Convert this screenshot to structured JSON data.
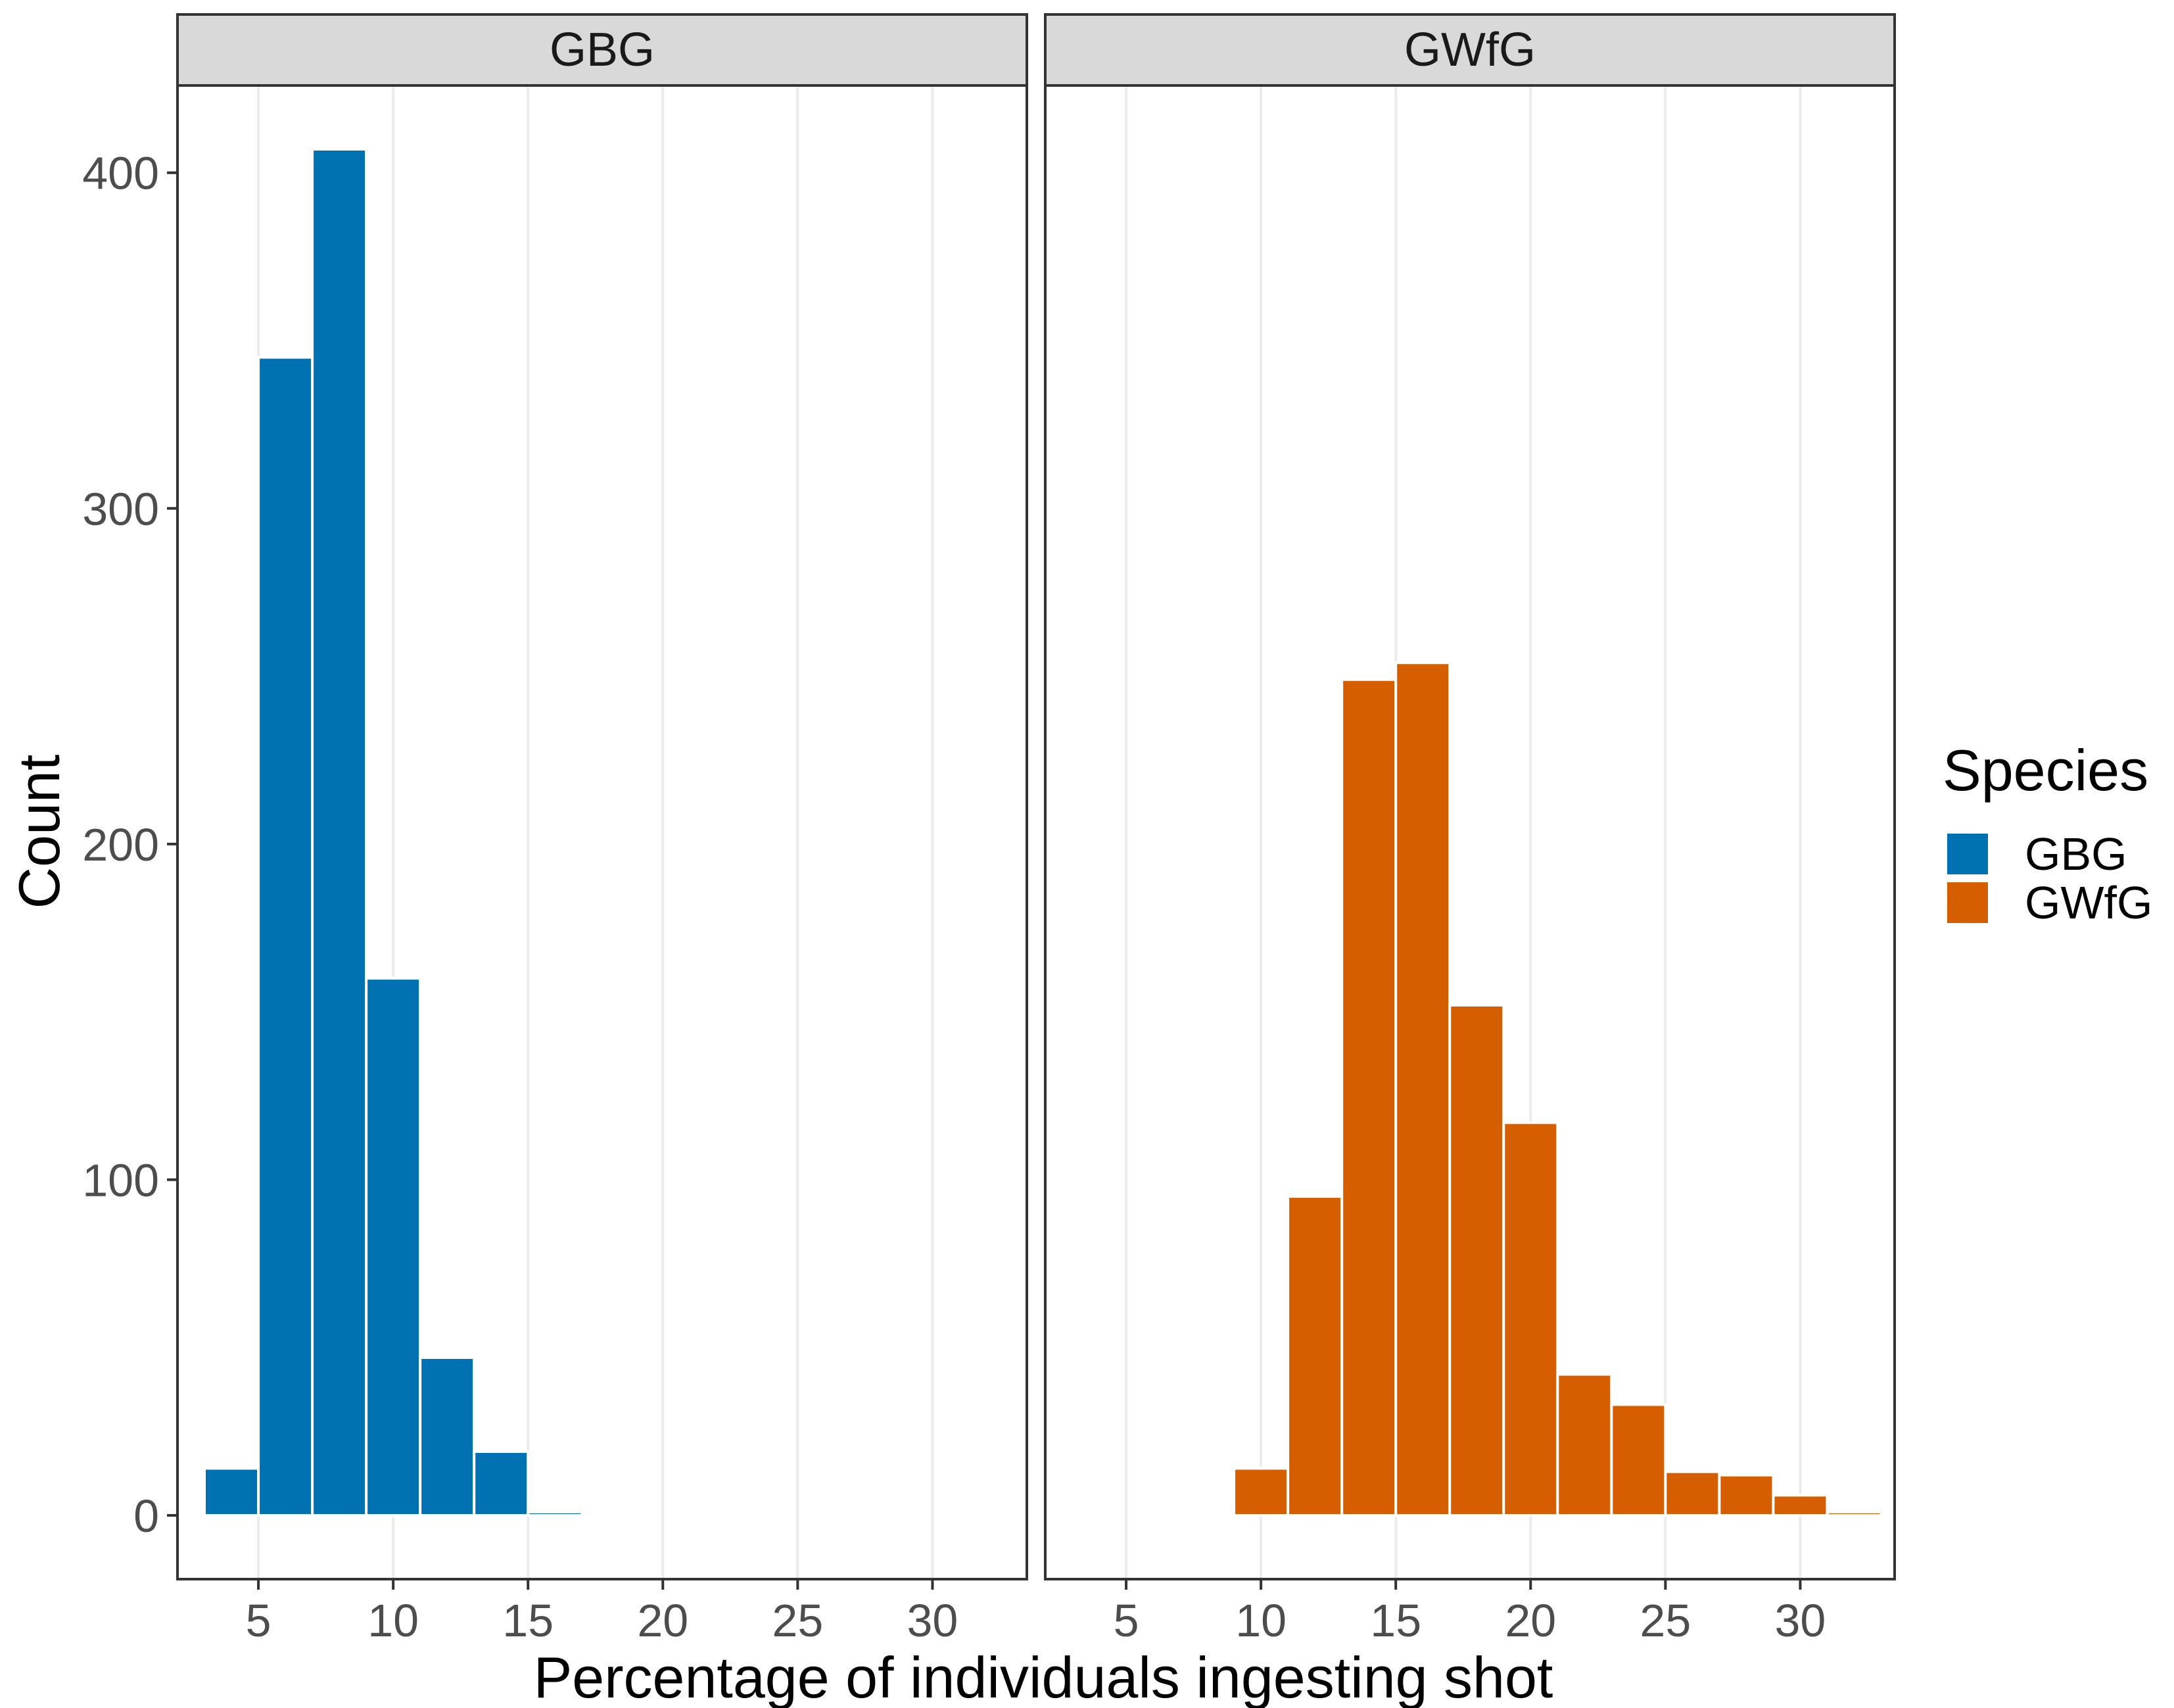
{
  "chart_data": {
    "type": "bar",
    "title": "",
    "xlabel": "Percentage of individuals ingesting shot",
    "ylabel": "Count",
    "xlim": [
      2.0,
      33.5
    ],
    "ylim": [
      -19,
      426
    ],
    "xticks": [
      "5",
      "10",
      "15",
      "20",
      "25",
      "30"
    ],
    "yticks": [
      "0",
      "100",
      "200",
      "300",
      "400"
    ],
    "legend": {
      "title": "Species",
      "position": "right",
      "entries": [
        {
          "name": "GBG",
          "color": "#0072B2"
        },
        {
          "name": "GWfG",
          "color": "#D55E00"
        }
      ]
    },
    "facets": [
      {
        "name": "GBG",
        "color": "#0072B2",
        "bin_width": 2,
        "bins": [
          {
            "x": [
              3,
              5
            ],
            "count": 14
          },
          {
            "x": [
              5,
              7
            ],
            "count": 345
          },
          {
            "x": [
              7,
              9
            ],
            "count": 407
          },
          {
            "x": [
              9,
              11
            ],
            "count": 160
          },
          {
            "x": [
              11,
              13
            ],
            "count": 47
          },
          {
            "x": [
              13,
              15
            ],
            "count": 19
          },
          {
            "x": [
              15,
              17
            ],
            "count": 1
          }
        ]
      },
      {
        "name": "GWfG",
        "color": "#D55E00",
        "bin_width": 2,
        "bins": [
          {
            "x": [
              9,
              11
            ],
            "count": 14
          },
          {
            "x": [
              11,
              13
            ],
            "count": 95
          },
          {
            "x": [
              13,
              15
            ],
            "count": 249
          },
          {
            "x": [
              15,
              17
            ],
            "count": 254
          },
          {
            "x": [
              17,
              19
            ],
            "count": 152
          },
          {
            "x": [
              19,
              21
            ],
            "count": 117
          },
          {
            "x": [
              21,
              23
            ],
            "count": 42
          },
          {
            "x": [
              23,
              25
            ],
            "count": 33
          },
          {
            "x": [
              25,
              27
            ],
            "count": 13
          },
          {
            "x": [
              27,
              29
            ],
            "count": 12
          },
          {
            "x": [
              29,
              31
            ],
            "count": 6
          },
          {
            "x": [
              31,
              33
            ],
            "count": 1
          }
        ]
      }
    ]
  }
}
